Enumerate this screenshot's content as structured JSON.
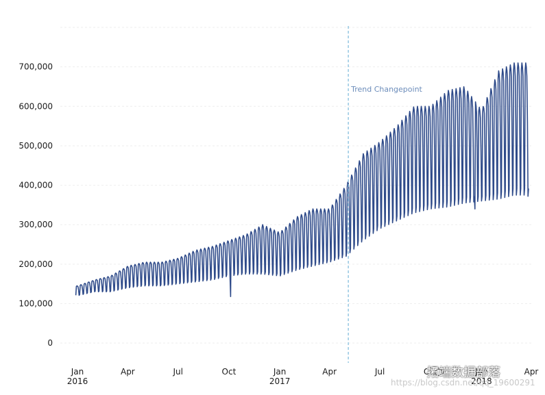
{
  "chart_data": {
    "type": "line",
    "title": "",
    "xlabel": "",
    "ylabel": "",
    "ylim": [
      -50000,
      800000
    ],
    "yticks": [
      0,
      100000,
      200000,
      300000,
      400000,
      500000,
      600000,
      700000
    ],
    "ytick_labels": [
      "0",
      "100,000",
      "200,000",
      "300,000",
      "400,000",
      "500,000",
      "600,000",
      "700,000"
    ],
    "xlim": [
      "2015-12-01",
      "2018-04-01"
    ],
    "xticks": [
      {
        "date": "2016-01-01",
        "label": "Jan",
        "year": "2016"
      },
      {
        "date": "2016-04-01",
        "label": "Apr",
        "year": ""
      },
      {
        "date": "2016-07-01",
        "label": "Jul",
        "year": ""
      },
      {
        "date": "2016-10-01",
        "label": "Oct",
        "year": ""
      },
      {
        "date": "2017-01-01",
        "label": "Jan",
        "year": "2017"
      },
      {
        "date": "2017-04-01",
        "label": "Apr",
        "year": ""
      },
      {
        "date": "2017-07-01",
        "label": "Jul",
        "year": ""
      },
      {
        "date": "2017-10-01",
        "label": "Oct",
        "year": ""
      },
      {
        "date": "2018-01-01",
        "label": "Jan",
        "year": "2018"
      },
      {
        "date": "2018-04-01",
        "label": "Apr",
        "year": ""
      }
    ],
    "grid": true,
    "series": [
      {
        "color": "#2f4b8a",
        "style": "daily series with weekly cycle",
        "envelope": {
          "dates": [
            "2016-01-01",
            "2016-02-01",
            "2016-03-01",
            "2016-04-01",
            "2016-05-01",
            "2016-06-01",
            "2016-07-01",
            "2016-08-01",
            "2016-09-01",
            "2016-10-01",
            "2016-11-01",
            "2016-12-01",
            "2017-01-01",
            "2017-02-01",
            "2017-03-01",
            "2017-04-01",
            "2017-05-01",
            "2017-06-01",
            "2017-07-01",
            "2017-08-01",
            "2017-09-01",
            "2017-10-01",
            "2017-11-01",
            "2017-12-01",
            "2018-01-01",
            "2018-02-01",
            "2018-03-01"
          ],
          "high": [
            145000,
            160000,
            170000,
            195000,
            205000,
            205000,
            215000,
            235000,
            245000,
            260000,
            275000,
            300000,
            280000,
            320000,
            340000,
            340000,
            400000,
            480000,
            510000,
            550000,
            600000,
            600000,
            640000,
            650000,
            590000,
            690000,
            710000
          ],
          "low": [
            120000,
            130000,
            130000,
            140000,
            145000,
            145000,
            150000,
            155000,
            160000,
            170000,
            175000,
            175000,
            170000,
            185000,
            195000,
            205000,
            220000,
            260000,
            290000,
            310000,
            330000,
            340000,
            345000,
            355000,
            360000,
            365000,
            375000
          ]
        },
        "anomalies": [
          {
            "date": "2016-10-04",
            "value": 118000
          },
          {
            "date": "2017-12-20",
            "value": 340000
          },
          {
            "date": "2018-03-26",
            "value": 372000
          }
        ]
      }
    ],
    "annotations": [
      {
        "type": "vline",
        "date": "2017-05-05",
        "label": "Trend Changepoint",
        "color": "#8ec3e0"
      }
    ]
  },
  "watermark": {
    "brand": "拓端数据部落",
    "url": "https://blog.csdn.net/qq_19600291"
  }
}
